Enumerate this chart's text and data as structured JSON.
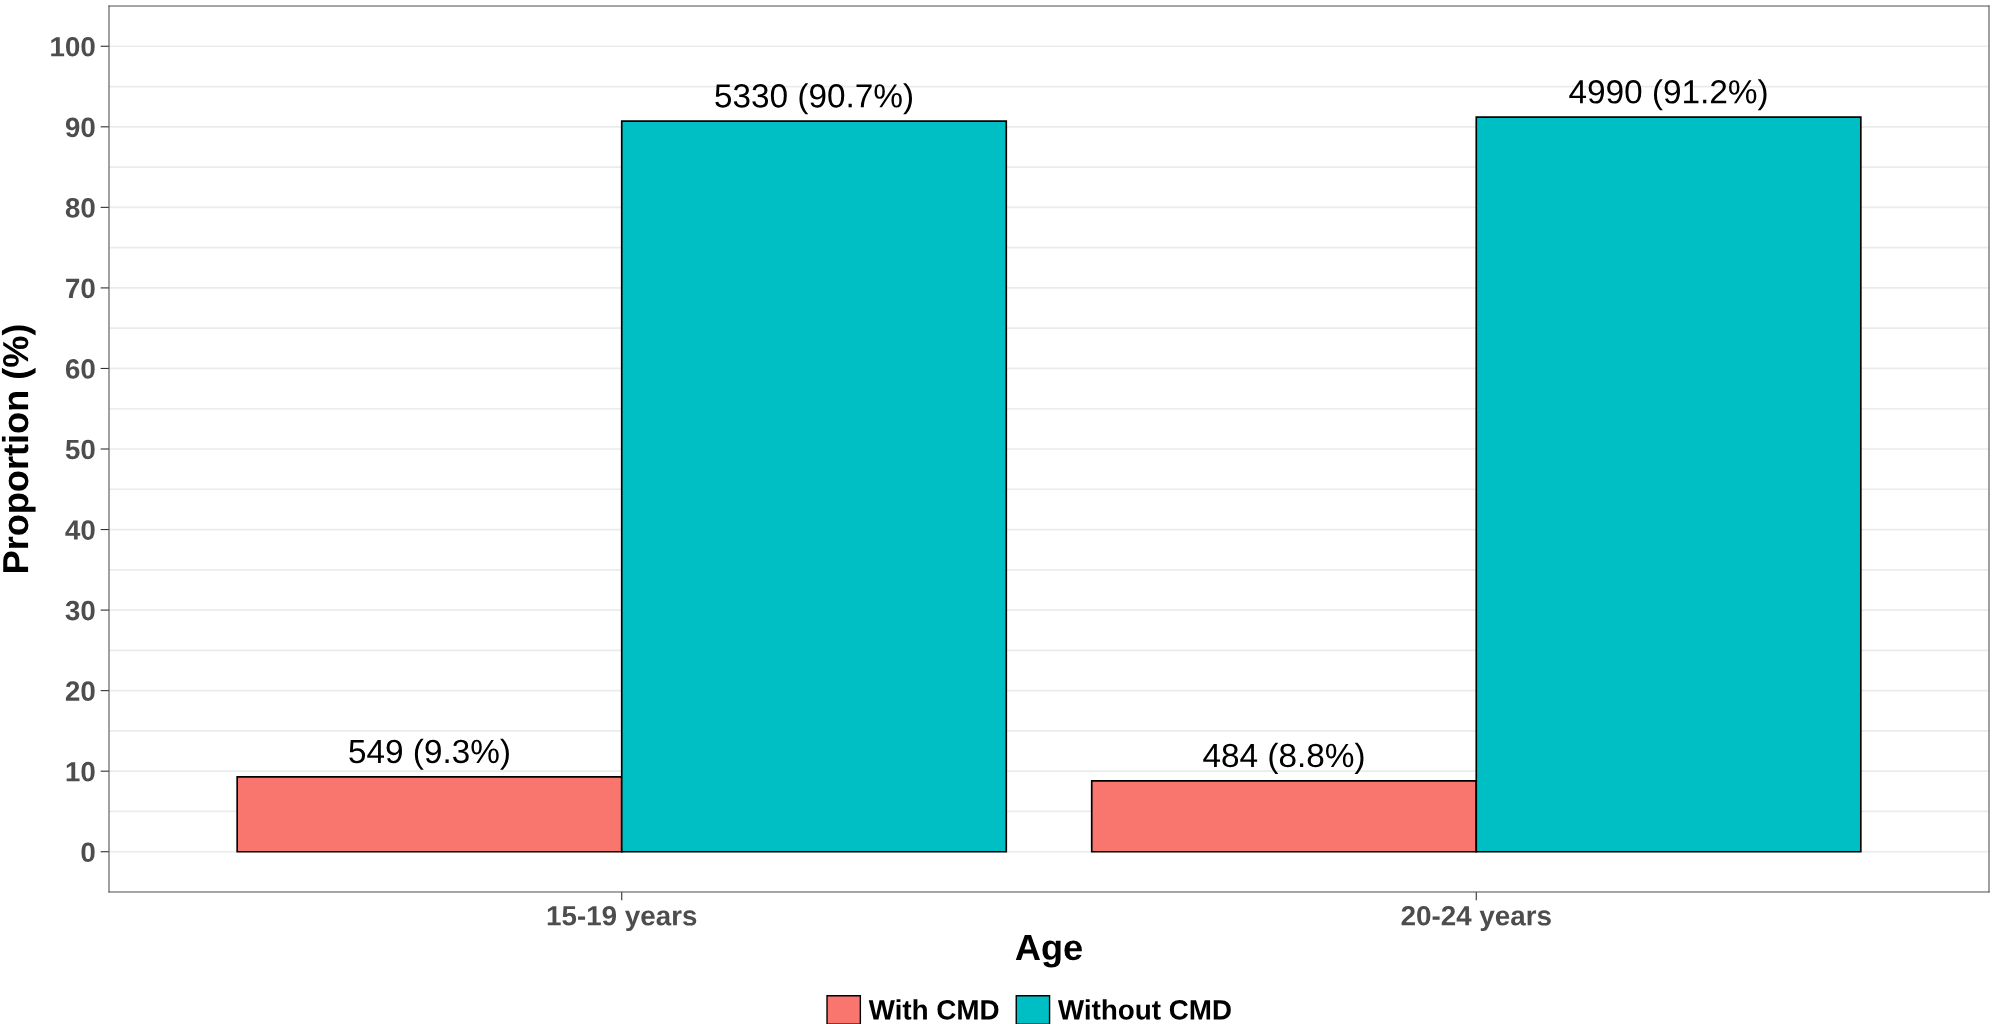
{
  "chart_data": {
    "type": "bar",
    "xlabel": "Age",
    "ylabel": "Proportion (%)",
    "categories": [
      "15-19 years",
      "20-24 years"
    ],
    "series": [
      {
        "name": "With CMD",
        "color": "#f8766d",
        "values": [
          9.3,
          8.8
        ],
        "value_labels": [
          "549 (9.3%)",
          "484 (8.8%)"
        ]
      },
      {
        "name": "Without CMD",
        "color": "#00bfc4",
        "values": [
          90.7,
          91.2
        ],
        "value_labels": [
          "5330 (90.7%)",
          "4990 (91.2%)"
        ]
      }
    ],
    "ylim": [
      -5,
      105
    ],
    "yticks": [
      0,
      10,
      20,
      30,
      40,
      50,
      60,
      70,
      80,
      90,
      100
    ],
    "grid": "y",
    "legend": "bottom"
  }
}
